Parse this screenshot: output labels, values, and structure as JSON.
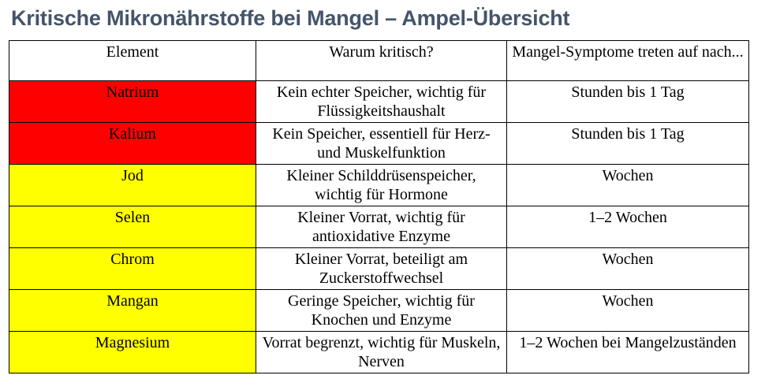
{
  "title": "Kritische Mikronährstoffe bei Mangel – Ampel-Übersicht",
  "colors": {
    "red": "#ff0000",
    "yellow": "#ffff00",
    "title": "#44546a"
  },
  "table": {
    "headers": [
      "Element",
      "Warum kritisch?",
      "Mangel-Symptome treten auf nach..."
    ],
    "rows": [
      {
        "element": "Natrium",
        "status": "red",
        "reason": "Kein echter Speicher, wichtig für Flüssigkeitshaushalt",
        "onset": "Stunden bis 1 Tag"
      },
      {
        "element": "Kalium",
        "status": "red",
        "reason": "Kein Speicher, essentiell für Herz- und Muskelfunktion",
        "onset": "Stunden bis 1 Tag"
      },
      {
        "element": "Jod",
        "status": "yellow",
        "reason": "Kleiner Schilddrüsenspeicher, wichtig für Hormone",
        "onset": "Wochen"
      },
      {
        "element": "Selen",
        "status": "yellow",
        "reason": "Kleiner Vorrat, wichtig für antioxidative Enzyme",
        "onset": "1–2 Wochen"
      },
      {
        "element": "Chrom",
        "status": "yellow",
        "reason": "Kleiner Vorrat, beteiligt am Zuckerstoffwechsel",
        "onset": "Wochen"
      },
      {
        "element": "Mangan",
        "status": "yellow",
        "reason": "Geringe Speicher, wichtig für Knochen und Enzyme",
        "onset": "Wochen"
      },
      {
        "element": "Magnesium",
        "status": "yellow",
        "reason": "Vorrat begrenzt, wichtig für Muskeln, Nerven",
        "onset": "1–2 Wochen bei Mangelzuständen"
      }
    ]
  }
}
